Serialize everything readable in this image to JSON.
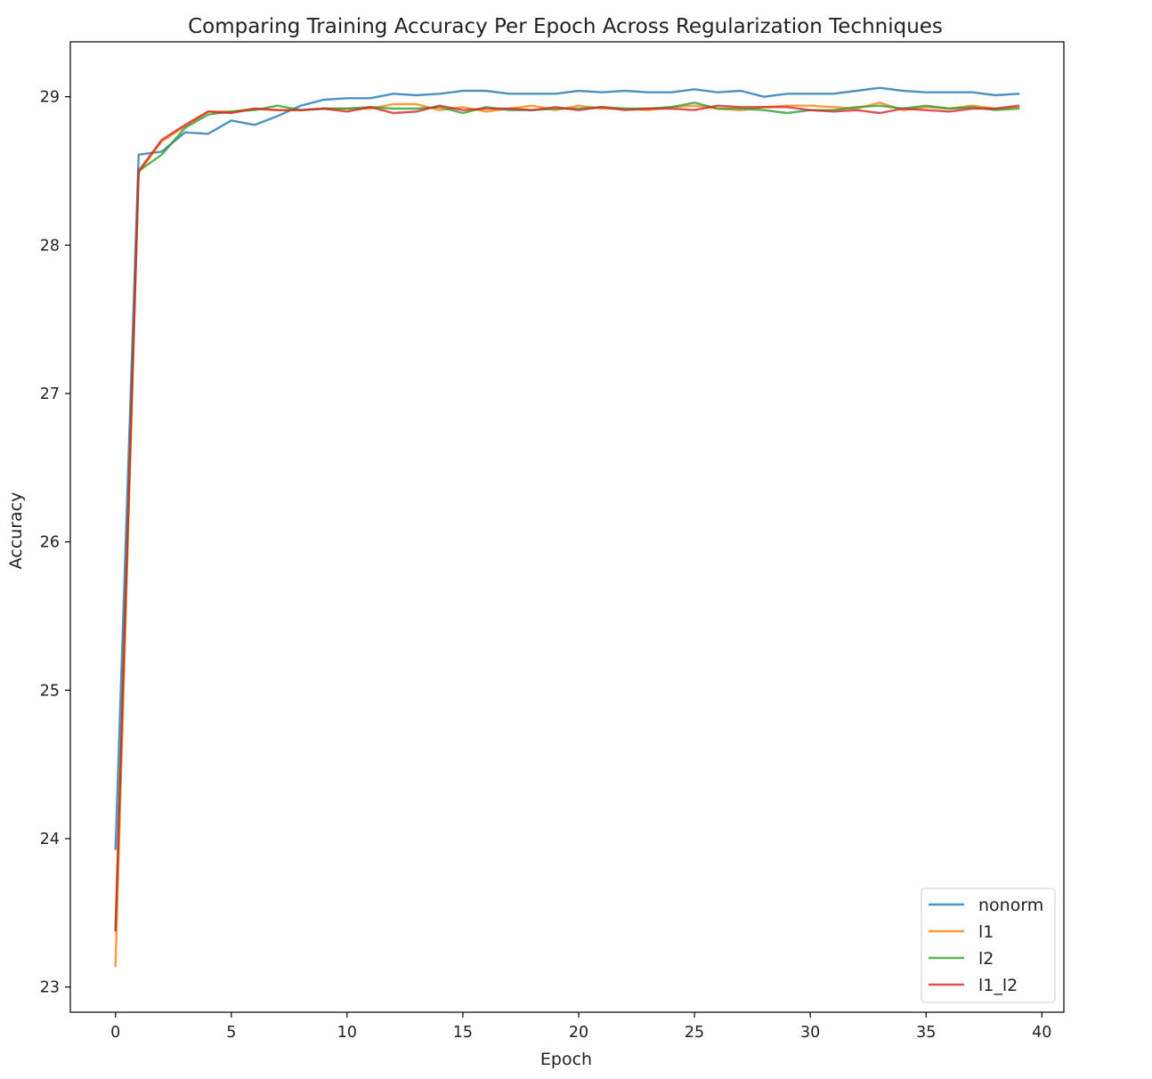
{
  "chart_data": {
    "type": "line",
    "title": "Comparing Training Accuracy Per Epoch Across Regularization Techniques",
    "xlabel": "Epoch",
    "ylabel": "Accuracy",
    "xlim": [
      -1.95,
      40.95
    ],
    "ylim": [
      22.83,
      29.37
    ],
    "xticks": [
      0,
      5,
      10,
      15,
      20,
      25,
      30,
      35,
      40
    ],
    "yticks": [
      23,
      24,
      25,
      26,
      27,
      28,
      29
    ],
    "grid": false,
    "legend_position": "lower-right",
    "x": [
      0,
      1,
      2,
      3,
      4,
      5,
      6,
      7,
      8,
      9,
      10,
      11,
      12,
      13,
      14,
      15,
      16,
      17,
      18,
      19,
      20,
      21,
      22,
      23,
      24,
      25,
      26,
      27,
      28,
      29,
      30,
      31,
      32,
      33,
      34,
      35,
      36,
      37,
      38,
      39
    ],
    "series": [
      {
        "name": "nonorm",
        "color": "#1f77b4",
        "values": [
          23.93,
          28.61,
          28.63,
          28.76,
          28.75,
          28.84,
          28.81,
          28.87,
          28.94,
          28.98,
          28.99,
          28.99,
          29.02,
          29.01,
          29.02,
          29.04,
          29.04,
          29.02,
          29.02,
          29.02,
          29.04,
          29.03,
          29.04,
          29.03,
          29.03,
          29.05,
          29.03,
          29.04,
          29.0,
          29.02,
          29.02,
          29.02,
          29.04,
          29.06,
          29.04,
          29.03,
          29.03,
          29.03,
          29.01,
          29.02
        ]
      },
      {
        "name": "l1",
        "color": "#ff7f0e",
        "values": [
          23.14,
          28.49,
          28.7,
          28.8,
          28.9,
          28.9,
          28.92,
          28.91,
          28.91,
          28.92,
          28.92,
          28.92,
          28.95,
          28.95,
          28.91,
          28.93,
          28.9,
          28.92,
          28.94,
          28.91,
          28.94,
          28.92,
          28.92,
          28.91,
          28.93,
          28.94,
          28.92,
          28.91,
          28.93,
          28.94,
          28.94,
          28.93,
          28.92,
          28.96,
          28.91,
          28.93,
          28.92,
          28.94,
          28.92,
          28.93
        ]
      },
      {
        "name": "l2",
        "color": "#2ca02c",
        "values": [
          23.38,
          28.5,
          28.61,
          28.79,
          28.88,
          28.9,
          28.91,
          28.94,
          28.91,
          28.92,
          28.92,
          28.93,
          28.92,
          28.92,
          28.93,
          28.89,
          28.93,
          28.91,
          28.91,
          28.92,
          28.92,
          28.93,
          28.92,
          28.92,
          28.93,
          28.96,
          28.92,
          28.92,
          28.91,
          28.89,
          28.91,
          28.91,
          28.93,
          28.94,
          28.92,
          28.94,
          28.92,
          28.93,
          28.91,
          28.92
        ]
      },
      {
        "name": "l1_l2",
        "color": "#d62728",
        "values": [
          23.38,
          28.5,
          28.71,
          28.81,
          28.9,
          28.89,
          28.92,
          28.91,
          28.91,
          28.92,
          28.9,
          28.93,
          28.89,
          28.9,
          28.94,
          28.91,
          28.92,
          28.92,
          28.91,
          28.93,
          28.91,
          28.93,
          28.91,
          28.92,
          28.92,
          28.91,
          28.94,
          28.93,
          28.93,
          28.93,
          28.91,
          28.9,
          28.91,
          28.89,
          28.92,
          28.91,
          28.9,
          28.92,
          28.92,
          28.94
        ]
      }
    ]
  }
}
